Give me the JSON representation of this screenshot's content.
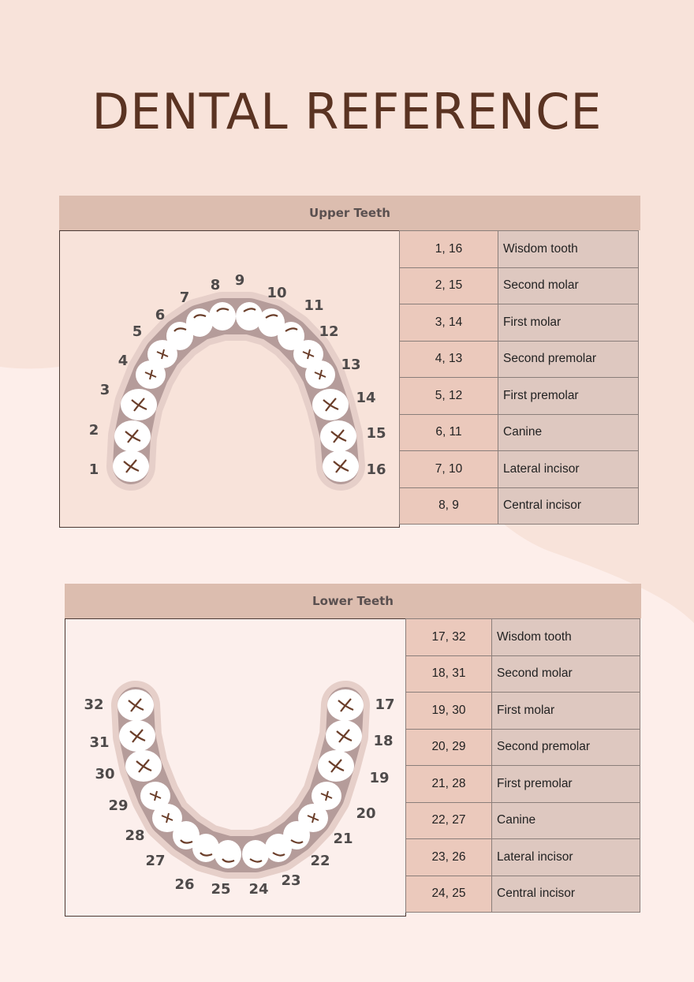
{
  "title": "DENTAL REFERENCE",
  "colors": {
    "background": "#f8e3da",
    "title": "#5a3322",
    "band": "#dcbdaf",
    "number_cell": "#ebc9bc",
    "name_cell": "#dec8c0",
    "tooth": "#ffffff",
    "tooth_mark": "#6b3e2a"
  },
  "upper": {
    "heading": "Upper Teeth",
    "tooth_numbers": [
      "1",
      "2",
      "3",
      "4",
      "5",
      "6",
      "7",
      "8",
      "9",
      "10",
      "11",
      "12",
      "13",
      "14",
      "15",
      "16"
    ],
    "rows": [
      {
        "numbers": "1, 16",
        "name": "Wisdom tooth"
      },
      {
        "numbers": "2, 15",
        "name": "Second molar"
      },
      {
        "numbers": "3, 14",
        "name": "First molar"
      },
      {
        "numbers": "4, 13",
        "name": "Second premolar"
      },
      {
        "numbers": "5, 12",
        "name": "First premolar"
      },
      {
        "numbers": "6, 11",
        "name": "Canine"
      },
      {
        "numbers": "7, 10",
        "name": "Lateral incisor"
      },
      {
        "numbers": "8, 9",
        "name": "Central incisor"
      }
    ]
  },
  "lower": {
    "heading": "Lower Teeth",
    "tooth_numbers": [
      "32",
      "31",
      "30",
      "29",
      "28",
      "27",
      "26",
      "25",
      "24",
      "23",
      "22",
      "21",
      "20",
      "19",
      "18",
      "17"
    ],
    "rows": [
      {
        "numbers": "17, 32",
        "name": "Wisdom tooth"
      },
      {
        "numbers": "18, 31",
        "name": "Second molar"
      },
      {
        "numbers": "19, 30",
        "name": "First molar"
      },
      {
        "numbers": "20, 29",
        "name": "Second premolar"
      },
      {
        "numbers": "21, 28",
        "name": "First premolar"
      },
      {
        "numbers": "22, 27",
        "name": "Canine"
      },
      {
        "numbers": "23, 26",
        "name": "Lateral incisor"
      },
      {
        "numbers": "24, 25",
        "name": "Central incisor"
      }
    ]
  }
}
